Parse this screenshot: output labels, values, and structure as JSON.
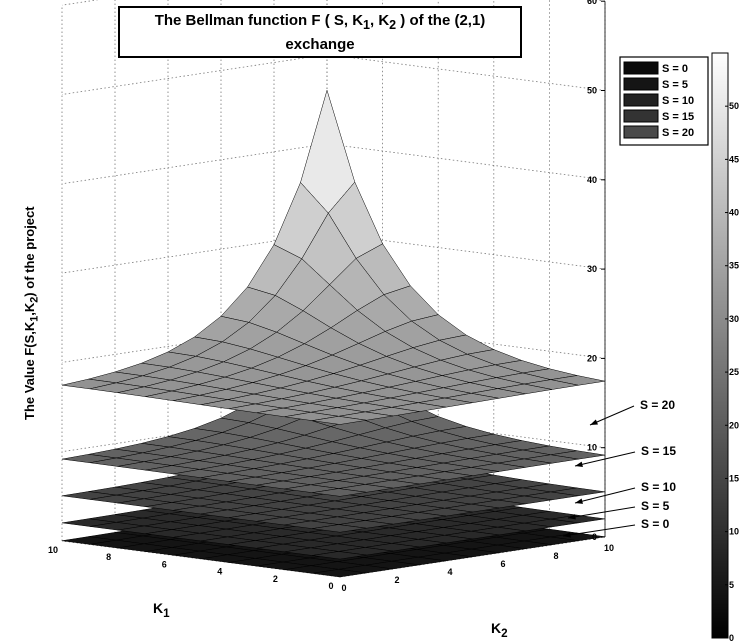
{
  "chart_data": {
    "type": "surface3d",
    "title_line1": "The Bellman function F ( S, K",
    "title_sub1": "1",
    "title_mid": ", K",
    "title_sub2": "2",
    "title_end": " ) of the (2,1)",
    "title_line2": "exchange",
    "zlabel_main": "The Value F(S,K",
    "zlabel_sub1": "1",
    "zlabel_mid": ",K",
    "zlabel_sub2": "2",
    "zlabel_end": ") of the project",
    "xlabel": "K",
    "xlabel_sub": "1",
    "ylabel": "K",
    "ylabel_sub": "2",
    "zlim": [
      0,
      60
    ],
    "zticks": [
      "0",
      "10",
      "20",
      "30",
      "40",
      "50",
      "60"
    ],
    "k1_ticks": [
      "0",
      "2",
      "4",
      "6",
      "8",
      "10"
    ],
    "k2_ticks": [
      "0",
      "2",
      "4",
      "6",
      "8",
      "10"
    ],
    "grid": true,
    "legend_position": "top-right",
    "legend": [
      "S = 0",
      "S = 5",
      "S = 10",
      "S = 15",
      "S = 20"
    ],
    "series": [
      {
        "name": "S = 0",
        "base": 0,
        "peak": 2
      },
      {
        "name": "S = 5",
        "base": 2,
        "peak": 4
      },
      {
        "name": "S = 10",
        "base": 5,
        "peak": 9
      },
      {
        "name": "S = 15",
        "base": 9,
        "peak": 20
      },
      {
        "name": "S = 20",
        "base": 17,
        "peak": 46
      }
    ],
    "annotations": [
      "S = 20",
      "S = 15",
      "S = 10",
      "S = 5",
      "S = 0"
    ],
    "colorbar": {
      "range": [
        0,
        55
      ],
      "ticks": [
        "0",
        "5",
        "10",
        "15",
        "20",
        "25",
        "30",
        "35",
        "40",
        "45",
        "50"
      ]
    }
  }
}
